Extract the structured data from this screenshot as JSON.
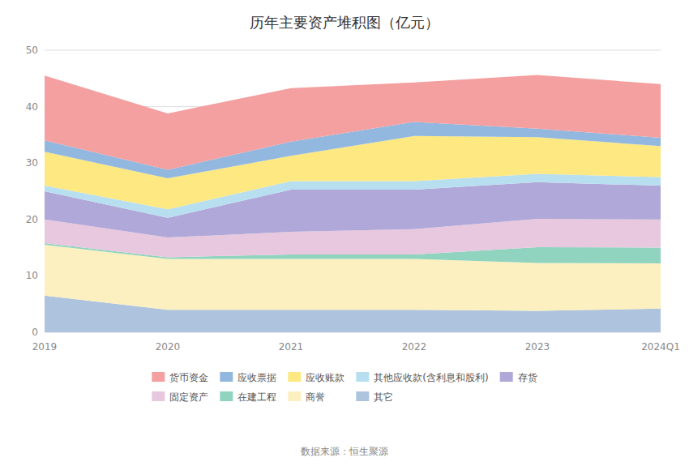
{
  "chart_data": {
    "type": "area",
    "stacked": true,
    "title": "历年主要资产堆积图（亿元）",
    "annotations": [
      "数据来源：恒生聚源"
    ],
    "categories": [
      "2019",
      "2020",
      "2021",
      "2022",
      "2023",
      "2024Q1"
    ],
    "ylim": [
      0,
      50
    ],
    "yticks": [
      0,
      10,
      20,
      30,
      40,
      50
    ],
    "grid": true,
    "legend": "bottom",
    "series": [
      {
        "name": "其它",
        "color": "#aec4de",
        "values": [
          6.5,
          4.0,
          4.0,
          4.0,
          3.8,
          4.2
        ]
      },
      {
        "name": "商誉",
        "color": "#fdf0c0",
        "values": [
          9.0,
          9.0,
          9.0,
          9.0,
          8.5,
          8.0
        ]
      },
      {
        "name": "在建工程",
        "color": "#90d4c0",
        "values": [
          0.3,
          0.3,
          0.8,
          0.8,
          2.8,
          2.8
        ]
      },
      {
        "name": "固定资产",
        "color": "#e8c8de",
        "values": [
          4.2,
          3.5,
          4.0,
          4.5,
          5.0,
          5.0
        ]
      },
      {
        "name": "存货",
        "color": "#b0a8d8",
        "values": [
          5.0,
          3.5,
          7.5,
          7.0,
          6.5,
          6.0
        ]
      },
      {
        "name": "其他应收款(含利息和股利)",
        "color": "#b8dff0",
        "values": [
          1.0,
          1.5,
          1.5,
          1.5,
          1.5,
          1.5
        ]
      },
      {
        "name": "应收账款",
        "color": "#fde882",
        "values": [
          6.0,
          5.5,
          4.5,
          8.0,
          6.5,
          5.5
        ]
      },
      {
        "name": "应收票据",
        "color": "#92b8e0",
        "values": [
          2.0,
          1.5,
          2.5,
          2.5,
          1.5,
          1.5
        ]
      },
      {
        "name": "货币资金",
        "color": "#f4a0a0",
        "values": [
          11.5,
          10.0,
          9.5,
          7.0,
          9.5,
          9.5
        ]
      }
    ]
  }
}
